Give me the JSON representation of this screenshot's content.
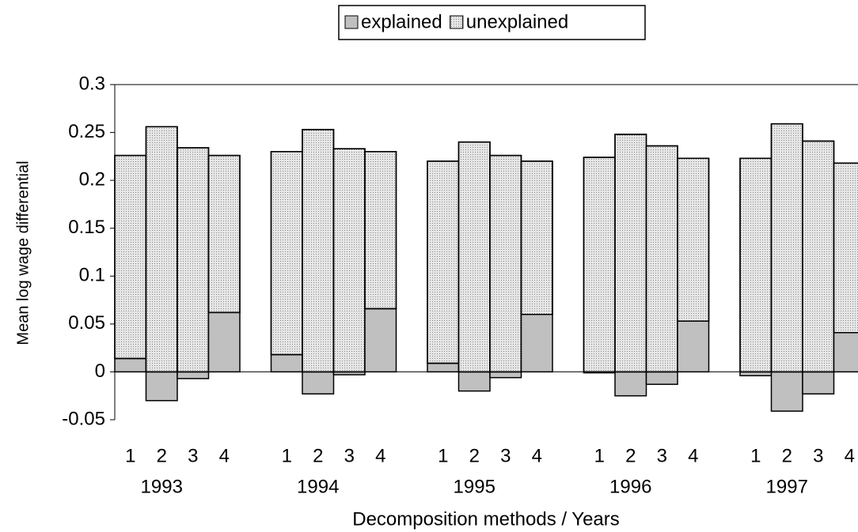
{
  "chart_data": {
    "type": "stacked_bar",
    "x_label": "Decomposition methods / Years",
    "y_label": "Mean log wage differential",
    "categories": [
      "1",
      "2",
      "3",
      "4",
      null,
      "1",
      "2",
      "3",
      "4",
      null,
      "1",
      "2",
      "3",
      "4",
      null,
      "1",
      "2",
      "3",
      "4",
      null,
      "1",
      "2",
      "3",
      "4"
    ],
    "group_labels": [
      "1993",
      "1994",
      "1995",
      "1996",
      "1997"
    ],
    "series": [
      {
        "name": "explained",
        "color": "#c0c0c0",
        "values": [
          0.014,
          -0.03,
          -0.007,
          0.062,
          null,
          0.018,
          -0.023,
          -0.003,
          0.066,
          null,
          0.009,
          -0.02,
          -0.006,
          0.06,
          null,
          -0.001,
          -0.025,
          -0.013,
          0.053,
          null,
          -0.004,
          -0.041,
          -0.023,
          0.041
        ]
      },
      {
        "name": "unexplained",
        "color": "#e6e6e6",
        "values": [
          0.212,
          0.256,
          0.234,
          0.164,
          null,
          0.212,
          0.253,
          0.233,
          0.164,
          null,
          0.211,
          0.24,
          0.226,
          0.16,
          null,
          0.224,
          0.248,
          0.236,
          0.17,
          null,
          0.223,
          0.259,
          0.241,
          0.177
        ]
      }
    ],
    "ylim": [
      -0.05,
      0.3
    ],
    "yticks": [
      -0.05,
      0,
      0.05,
      0.1,
      0.15,
      0.2,
      0.25,
      0.3
    ],
    "grid": false,
    "legend": "top"
  }
}
